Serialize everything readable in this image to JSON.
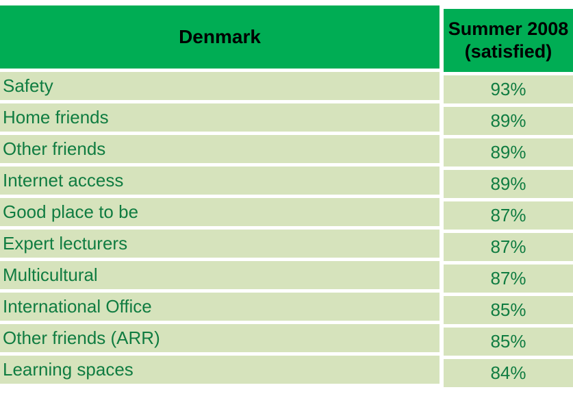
{
  "table": {
    "header": {
      "col1": "Denmark",
      "col2_line1": "Summer 2008",
      "col2_line2": "(satisfied)"
    },
    "rows": [
      {
        "label": "Safety",
        "value": "93%"
      },
      {
        "label": "Home friends",
        "value": "89%"
      },
      {
        "label": "Other friends",
        "value": "89%"
      },
      {
        "label": "Internet access",
        "value": "89%"
      },
      {
        "label": "Good place to be",
        "value": "87%"
      },
      {
        "label": "Expert lecturers",
        "value": "87%"
      },
      {
        "label": "Multicultural",
        "value": "87%"
      },
      {
        "label": "International Office",
        "value": "85%"
      },
      {
        "label": "Other friends (ARR)",
        "value": "85%"
      },
      {
        "label": "Learning spaces",
        "value": "84%"
      }
    ]
  },
  "colors": {
    "header_bg": "#00ad54",
    "row_bg": "#d6e3bc",
    "row_text": "#107c41",
    "header_text": "#000000",
    "divider": "#ffffff"
  },
  "chart_data": {
    "type": "table",
    "title": "Denmark",
    "columns": [
      "Denmark",
      "Summer 2008 (satisfied)"
    ],
    "categories": [
      "Safety",
      "Home friends",
      "Other friends",
      "Internet access",
      "Good place to be",
      "Expert lecturers",
      "Multicultural",
      "International Office",
      "Other friends (ARR)",
      "Learning spaces"
    ],
    "values": [
      93,
      89,
      89,
      89,
      87,
      87,
      87,
      85,
      85,
      84
    ],
    "value_unit": "%",
    "layout": "two-column table, header row green, data rows light green, white cell gaps"
  }
}
